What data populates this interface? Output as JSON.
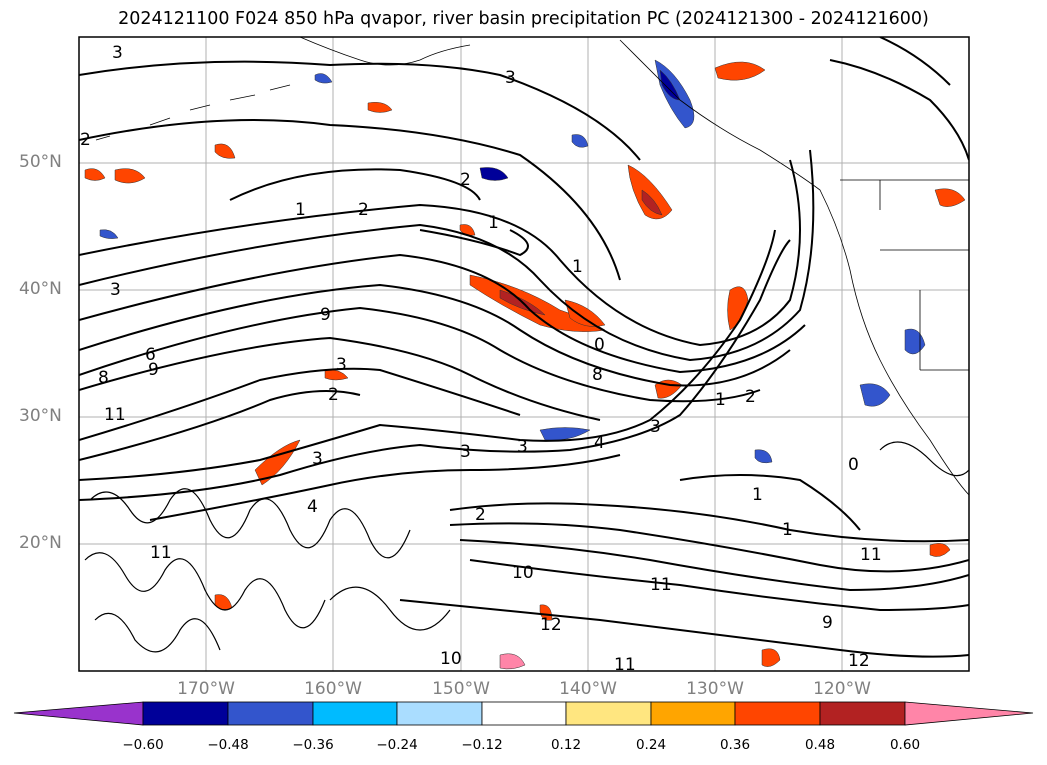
{
  "title": "2024121100 F024 850 hPa qvapor, river basin precipitation PC (2024121300 - 2024121600)",
  "lat_labels": [
    "50°N",
    "40°N",
    "30°N",
    "20°N"
  ],
  "lon_labels": [
    "170°W",
    "160°W",
    "150°W",
    "140°W",
    "130°W",
    "120°W"
  ],
  "colorbar": {
    "ticks": [
      "−0.60",
      "−0.48",
      "−0.36",
      "−0.24",
      "−0.12",
      "0.12",
      "0.24",
      "0.36",
      "0.48",
      "0.60"
    ],
    "colors": [
      "#9933cc",
      "#000099",
      "#3355cc",
      "#00bbff",
      "#aaddff",
      "#ffffff",
      "#ffe680",
      "#ffa500",
      "#ff4500",
      "#b22222",
      "#ff85a8"
    ]
  },
  "contour_labels": [
    "3",
    "3",
    "2",
    "2",
    "1",
    "2",
    "1",
    "1",
    "3",
    "9",
    "6",
    "8",
    "9",
    "0",
    "3",
    "2",
    "8",
    "11",
    "3",
    "3",
    "3",
    "4",
    "3",
    "1",
    "2",
    "1",
    "0",
    "1",
    "4",
    "11",
    "2",
    "11",
    "10",
    "11",
    "9",
    "12",
    "11",
    "10",
    "12"
  ]
}
